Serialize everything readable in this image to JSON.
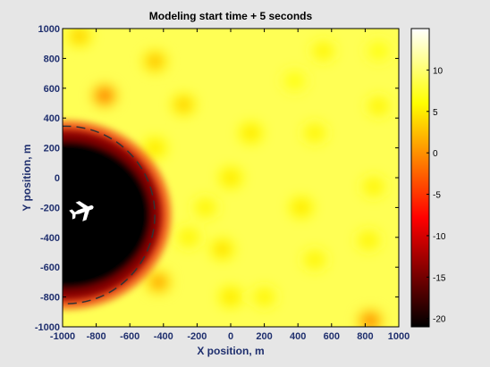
{
  "chart_data": {
    "type": "heatmap",
    "title": "Modeling start time + 5 seconds",
    "xlabel": "X position, m",
    "ylabel": "Y position, m",
    "xlim": [
      -1000,
      1000
    ],
    "ylim": [
      -1000,
      1000
    ],
    "xticks": [
      -1000,
      -800,
      -600,
      -400,
      -200,
      0,
      200,
      400,
      600,
      800,
      1000
    ],
    "yticks": [
      -1000,
      -800,
      -600,
      -400,
      -200,
      0,
      200,
      400,
      600,
      800,
      1000
    ],
    "colorbar": {
      "range": [
        -21,
        15
      ],
      "ticks": [
        -20,
        -15,
        -10,
        -5,
        0,
        5,
        10
      ],
      "colormap": "hot"
    },
    "background_value": 9,
    "shadow_zone": {
      "center": [
        -980,
        -250
      ],
      "radius": 560,
      "value": -21
    },
    "hot_spots": [
      {
        "x": -900,
        "y": 950,
        "value": 2
      },
      {
        "x": -450,
        "y": 780,
        "value": 1
      },
      {
        "x": -750,
        "y": 550,
        "value": -4
      },
      {
        "x": -280,
        "y": 490,
        "value": 2
      },
      {
        "x": -450,
        "y": 200,
        "value": 4
      },
      {
        "x": -650,
        "y": 50,
        "value": -2
      },
      {
        "x": 0,
        "y": 0,
        "value": 4
      },
      {
        "x": 120,
        "y": 300,
        "value": 4
      },
      {
        "x": 500,
        "y": 300,
        "value": 5
      },
      {
        "x": -430,
        "y": -700,
        "value": -1
      },
      {
        "x": -150,
        "y": -200,
        "value": 5
      },
      {
        "x": -250,
        "y": -400,
        "value": 5
      },
      {
        "x": -50,
        "y": -480,
        "value": 3
      },
      {
        "x": 420,
        "y": -200,
        "value": 4
      },
      {
        "x": 0,
        "y": -800,
        "value": 4
      },
      {
        "x": 200,
        "y": -800,
        "value": 5
      },
      {
        "x": 500,
        "y": -550,
        "value": 5
      },
      {
        "x": 550,
        "y": 850,
        "value": 5
      },
      {
        "x": 820,
        "y": -420,
        "value": 5
      },
      {
        "x": 880,
        "y": 480,
        "value": 5
      },
      {
        "x": 850,
        "y": -60,
        "value": 5
      },
      {
        "x": 830,
        "y": -960,
        "value": -3
      },
      {
        "x": 380,
        "y": 650,
        "value": 6
      },
      {
        "x": 880,
        "y": 850,
        "value": 6
      }
    ],
    "aircraft": {
      "x": -880,
      "y": -220
    },
    "grid": false,
    "colors": {
      "axis_text": "#1f2f6e",
      "boundary_circle": "#333333",
      "background": "#e6e6e6"
    }
  }
}
